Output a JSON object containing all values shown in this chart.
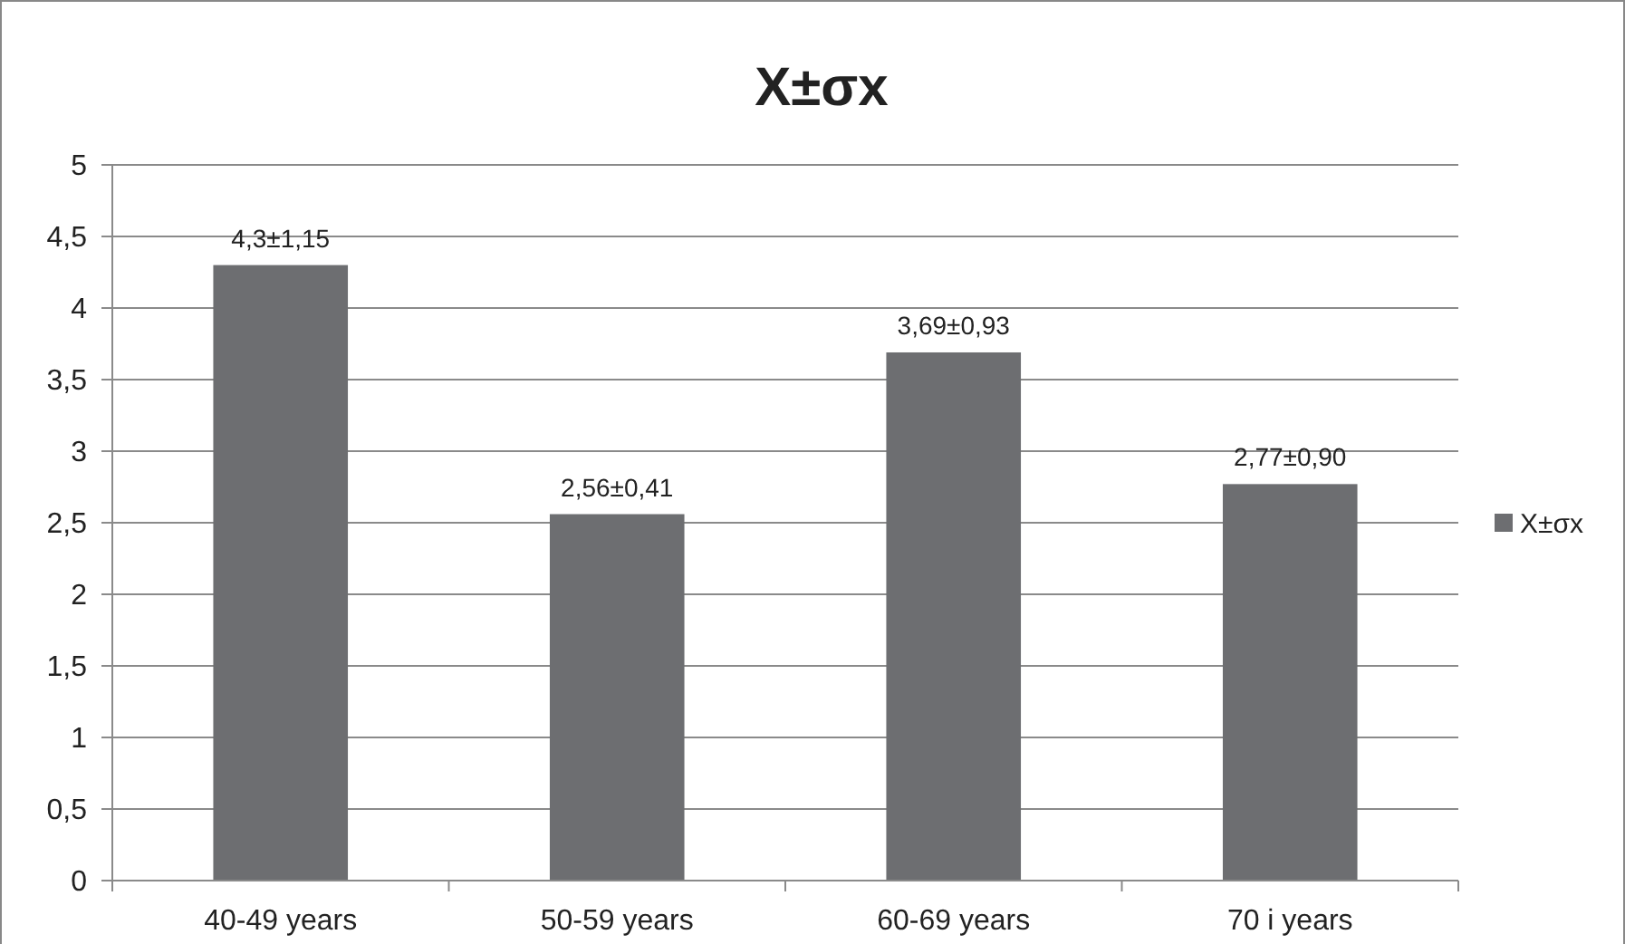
{
  "chart_data": {
    "type": "bar",
    "title": "X±σx",
    "categories": [
      "40-49 years",
      "50-59 years",
      "60-69 years",
      "70 i years"
    ],
    "series": [
      {
        "name": "X±σx",
        "color": "#6d6e71",
        "values": [
          4.3,
          2.56,
          3.69,
          2.77
        ],
        "value_labels": [
          "4,3±1,15",
          "2,56±0,41",
          "3,69±0,93",
          "2,77±0,90"
        ]
      }
    ],
    "ylim": [
      0,
      5
    ],
    "yticks": [
      0,
      {
        "value": 0.5,
        "label": "0,5"
      },
      1,
      {
        "value": 1.5,
        "label": "1,5"
      },
      2,
      {
        "value": 2.5,
        "label": "2,5"
      },
      3,
      {
        "value": 3.5,
        "label": "3,5"
      },
      4,
      {
        "value": 4.5,
        "label": "4,5"
      },
      5
    ],
    "grid": "y",
    "legend": "right"
  }
}
